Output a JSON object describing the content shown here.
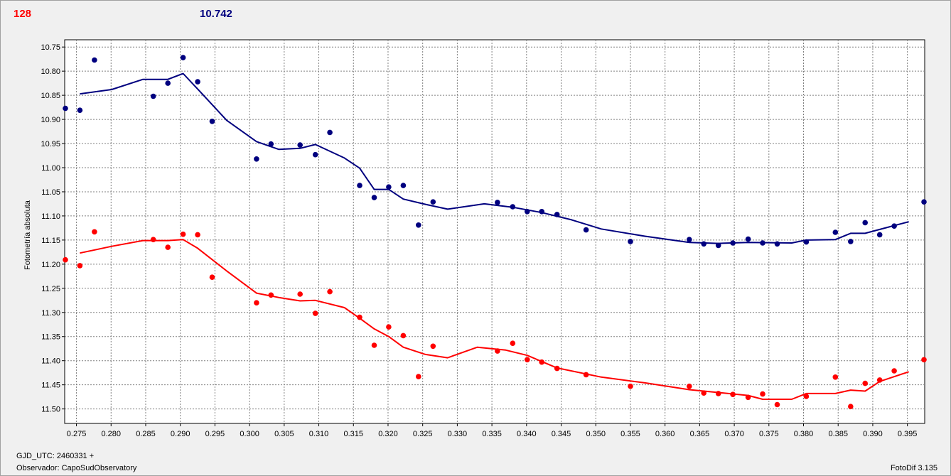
{
  "header": {
    "count": "128",
    "value": "10.742"
  },
  "footer": {
    "gjd": "GJD_UTC: 2460331 +",
    "observer": "Observador: CapoSudObservatory",
    "version": "FotoDif 3.135"
  },
  "colors": {
    "red": "#ff0000",
    "blue": "#00007f",
    "grid": "#808080",
    "plot_bg": "#ffffff"
  },
  "chart_data": {
    "type": "scatter",
    "ylabel": "Fotometría absoluta",
    "xlim": [
      0.2733,
      0.3975
    ],
    "ylim": [
      10.735,
      11.53
    ],
    "y_inverted": true,
    "grid": true,
    "x_ticks": [
      "0.275",
      "0.280",
      "0.285",
      "0.290",
      "0.295",
      "0.300",
      "0.305",
      "0.310",
      "0.315",
      "0.320",
      "0.325",
      "0.330",
      "0.335",
      "0.340",
      "0.345",
      "0.350",
      "0.355",
      "0.360",
      "0.365",
      "0.370",
      "0.375",
      "0.380",
      "0.385",
      "0.390",
      "0.395"
    ],
    "y_ticks": [
      "10.75",
      "10.80",
      "10.85",
      "10.90",
      "10.95",
      "11.00",
      "11.05",
      "11.10",
      "11.15",
      "11.20",
      "11.25",
      "11.30",
      "11.35",
      "11.40",
      "11.45",
      "11.50"
    ],
    "series": [
      {
        "color": "#00007f",
        "points": [
          [
            0.2734,
            10.877
          ],
          [
            0.2755,
            10.881
          ],
          [
            0.2776,
            10.777
          ],
          [
            0.2861,
            10.852
          ],
          [
            0.2882,
            10.825
          ],
          [
            0.2904,
            10.772
          ],
          [
            0.2925,
            10.822
          ],
          [
            0.2946,
            10.904
          ],
          [
            0.301,
            10.982
          ],
          [
            0.3031,
            10.951
          ],
          [
            0.3073,
            10.953
          ],
          [
            0.3095,
            10.973
          ],
          [
            0.3116,
            10.927
          ],
          [
            0.3159,
            11.037
          ],
          [
            0.318,
            11.062
          ],
          [
            0.3201,
            11.04
          ],
          [
            0.3222,
            11.037
          ],
          [
            0.3244,
            11.119
          ],
          [
            0.3265,
            11.071
          ],
          [
            0.3358,
            11.072
          ],
          [
            0.338,
            11.081
          ],
          [
            0.3401,
            11.091
          ],
          [
            0.3422,
            11.091
          ],
          [
            0.3444,
            11.097
          ],
          [
            0.3486,
            11.129
          ],
          [
            0.355,
            11.153
          ],
          [
            0.3635,
            11.149
          ],
          [
            0.3656,
            11.158
          ],
          [
            0.3677,
            11.161
          ],
          [
            0.3698,
            11.156
          ],
          [
            0.372,
            11.148
          ],
          [
            0.3741,
            11.156
          ],
          [
            0.3762,
            11.158
          ],
          [
            0.3804,
            11.154
          ],
          [
            0.3846,
            11.134
          ],
          [
            0.3868,
            11.153
          ],
          [
            0.3889,
            11.114
          ],
          [
            0.391,
            11.139
          ],
          [
            0.3931,
            11.121
          ],
          [
            0.3974,
            11.071
          ]
        ],
        "line": [
          [
            0.2755,
            10.847
          ],
          [
            0.2801,
            10.838
          ],
          [
            0.2846,
            10.817
          ],
          [
            0.2882,
            10.817
          ],
          [
            0.2904,
            10.805
          ],
          [
            0.2925,
            10.837
          ],
          [
            0.2967,
            10.902
          ],
          [
            0.301,
            10.946
          ],
          [
            0.3042,
            10.962
          ],
          [
            0.3073,
            10.96
          ],
          [
            0.3095,
            10.952
          ],
          [
            0.3137,
            10.98
          ],
          [
            0.3159,
            11.001
          ],
          [
            0.318,
            11.045
          ],
          [
            0.3201,
            11.045
          ],
          [
            0.3222,
            11.065
          ],
          [
            0.3254,
            11.076
          ],
          [
            0.3286,
            11.086
          ],
          [
            0.3339,
            11.075
          ],
          [
            0.338,
            11.082
          ],
          [
            0.3422,
            11.093
          ],
          [
            0.3465,
            11.108
          ],
          [
            0.3508,
            11.127
          ],
          [
            0.3571,
            11.142
          ],
          [
            0.3635,
            11.155
          ],
          [
            0.3677,
            11.157
          ],
          [
            0.372,
            11.155
          ],
          [
            0.3783,
            11.156
          ],
          [
            0.3804,
            11.15
          ],
          [
            0.3846,
            11.149
          ],
          [
            0.3868,
            11.136
          ],
          [
            0.3889,
            11.136
          ],
          [
            0.3931,
            11.12
          ],
          [
            0.3952,
            11.112
          ]
        ]
      },
      {
        "color": "#ff0000",
        "points": [
          [
            0.2734,
            11.191
          ],
          [
            0.2755,
            11.203
          ],
          [
            0.2776,
            11.133
          ],
          [
            0.2861,
            11.149
          ],
          [
            0.2882,
            11.165
          ],
          [
            0.2904,
            11.138
          ],
          [
            0.2925,
            11.139
          ],
          [
            0.2946,
            11.227
          ],
          [
            0.301,
            11.28
          ],
          [
            0.3031,
            11.264
          ],
          [
            0.3073,
            11.262
          ],
          [
            0.3095,
            11.302
          ],
          [
            0.3116,
            11.257
          ],
          [
            0.3159,
            11.31
          ],
          [
            0.318,
            11.368
          ],
          [
            0.3201,
            11.33
          ],
          [
            0.3222,
            11.348
          ],
          [
            0.3244,
            11.433
          ],
          [
            0.3265,
            11.37
          ],
          [
            0.3358,
            11.38
          ],
          [
            0.338,
            11.364
          ],
          [
            0.3401,
            11.398
          ],
          [
            0.3422,
            11.403
          ],
          [
            0.3444,
            11.416
          ],
          [
            0.3486,
            11.429
          ],
          [
            0.355,
            11.453
          ],
          [
            0.3635,
            11.453
          ],
          [
            0.3656,
            11.467
          ],
          [
            0.3677,
            11.468
          ],
          [
            0.3698,
            11.47
          ],
          [
            0.372,
            11.476
          ],
          [
            0.3741,
            11.469
          ],
          [
            0.3762,
            11.491
          ],
          [
            0.3804,
            11.474
          ],
          [
            0.3846,
            11.434
          ],
          [
            0.3868,
            11.495
          ],
          [
            0.3889,
            11.447
          ],
          [
            0.391,
            11.44
          ],
          [
            0.3931,
            11.421
          ],
          [
            0.3974,
            11.398
          ]
        ],
        "line": [
          [
            0.2755,
            11.177
          ],
          [
            0.2801,
            11.163
          ],
          [
            0.2846,
            11.151
          ],
          [
            0.2882,
            11.151
          ],
          [
            0.2904,
            11.149
          ],
          [
            0.2925,
            11.167
          ],
          [
            0.2967,
            11.214
          ],
          [
            0.301,
            11.26
          ],
          [
            0.3042,
            11.269
          ],
          [
            0.3073,
            11.276
          ],
          [
            0.3095,
            11.275
          ],
          [
            0.3137,
            11.29
          ],
          [
            0.3159,
            11.312
          ],
          [
            0.318,
            11.334
          ],
          [
            0.3201,
            11.35
          ],
          [
            0.3222,
            11.372
          ],
          [
            0.3254,
            11.387
          ],
          [
            0.3286,
            11.394
          ],
          [
            0.3329,
            11.372
          ],
          [
            0.337,
            11.378
          ],
          [
            0.3401,
            11.389
          ],
          [
            0.3444,
            11.415
          ],
          [
            0.3508,
            11.434
          ],
          [
            0.3571,
            11.446
          ],
          [
            0.3635,
            11.46
          ],
          [
            0.3677,
            11.466
          ],
          [
            0.372,
            11.472
          ],
          [
            0.3741,
            11.48
          ],
          [
            0.3783,
            11.48
          ],
          [
            0.3804,
            11.468
          ],
          [
            0.3846,
            11.468
          ],
          [
            0.3868,
            11.461
          ],
          [
            0.3889,
            11.463
          ],
          [
            0.391,
            11.443
          ],
          [
            0.3952,
            11.423
          ]
        ]
      }
    ]
  }
}
